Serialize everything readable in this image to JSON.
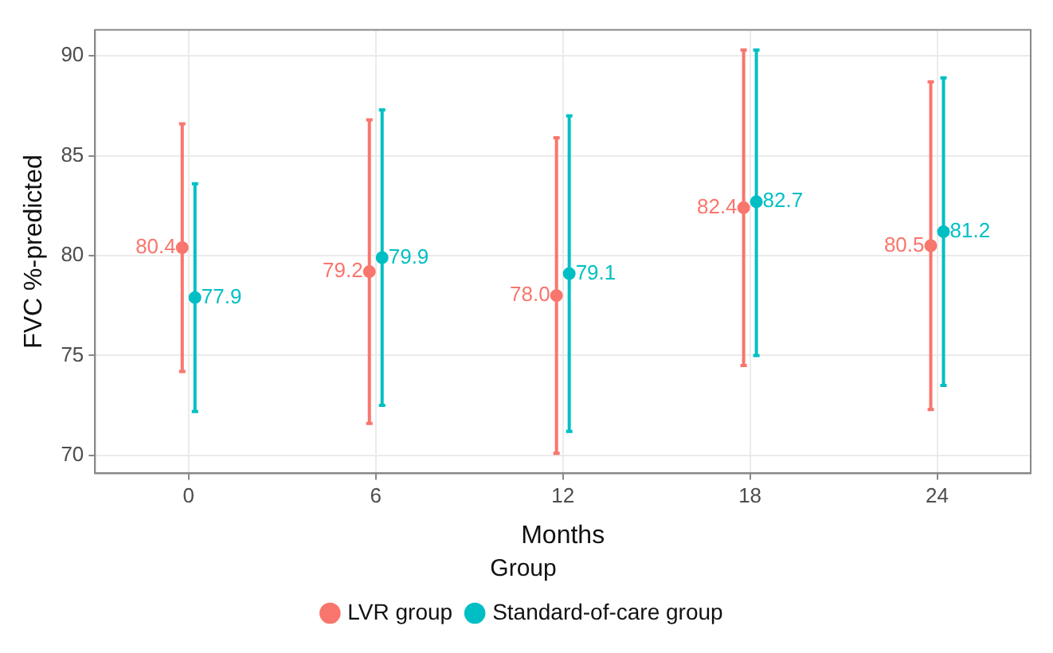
{
  "chart_data": {
    "type": "scatter",
    "xlabel": "Months",
    "ylabel": "FVC %-predicted",
    "legend_title": "Group",
    "categories": [
      "0",
      "6",
      "12",
      "18",
      "24"
    ],
    "series": [
      {
        "name": "LVR group",
        "color": "#f8766d",
        "values": [
          80.4,
          79.2,
          78.0,
          82.4,
          80.5
        ],
        "value_labels": [
          "80.4",
          "79.2",
          "78.0",
          "82.4",
          "80.5"
        ],
        "errors": [
          [
            74.2,
            86.6
          ],
          [
            71.6,
            86.8
          ],
          [
            70.1,
            85.9
          ],
          [
            74.5,
            90.3
          ],
          [
            72.3,
            88.7
          ]
        ]
      },
      {
        "name": "Standard-of-care group",
        "color": "#00bfc4",
        "values": [
          77.9,
          79.9,
          79.1,
          82.7,
          81.2
        ],
        "value_labels": [
          "77.9",
          "79.9",
          "79.1",
          "82.7",
          "81.2"
        ],
        "errors": [
          [
            72.2,
            83.6
          ],
          [
            72.5,
            87.3
          ],
          [
            71.2,
            87.0
          ],
          [
            75.0,
            90.3
          ],
          [
            73.5,
            88.9
          ]
        ]
      }
    ],
    "ylim": [
      69.1,
      91.3
    ],
    "yticks": [
      70,
      75,
      80,
      85,
      90
    ],
    "grid": true,
    "legend": "bottom",
    "marker": "circle"
  }
}
